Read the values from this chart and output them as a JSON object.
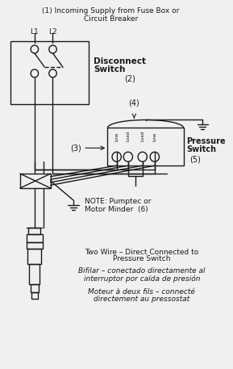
{
  "title1": "(1) Incoming Supply from Fuse Box or",
  "title2": "Circuit Breaker",
  "bg_color": "#f0f0f0",
  "text_color": "#1a1a1a",
  "label_disconnect": "Disconnect",
  "label_switch": "Switch",
  "label_num2": "(2)",
  "label_num3": "(3)",
  "label_num4": "(4)",
  "label_pressure": "Pressure",
  "label_switch2": "Switch",
  "label_num5": "(5)",
  "label_note": "NOTE: Pumptec or",
  "label_motor_minder": "Motor Minder",
  "label_num6": "(6)",
  "label_L1": "L1",
  "label_L2": "L2",
  "label_line1": "Line",
  "label_load1": "Load",
  "label_load2": "Load",
  "label_line2": "Line",
  "bottom_text1": "Two Wire – Direct Connected to",
  "bottom_text2": "Pressure Switch",
  "bottom_text3": "Bifilar – conectado directamente al",
  "bottom_text4": "interruptor por caída de presión",
  "bottom_text5": "Moteur à deux fils – connecté",
  "bottom_text6": "directement au pressostat"
}
